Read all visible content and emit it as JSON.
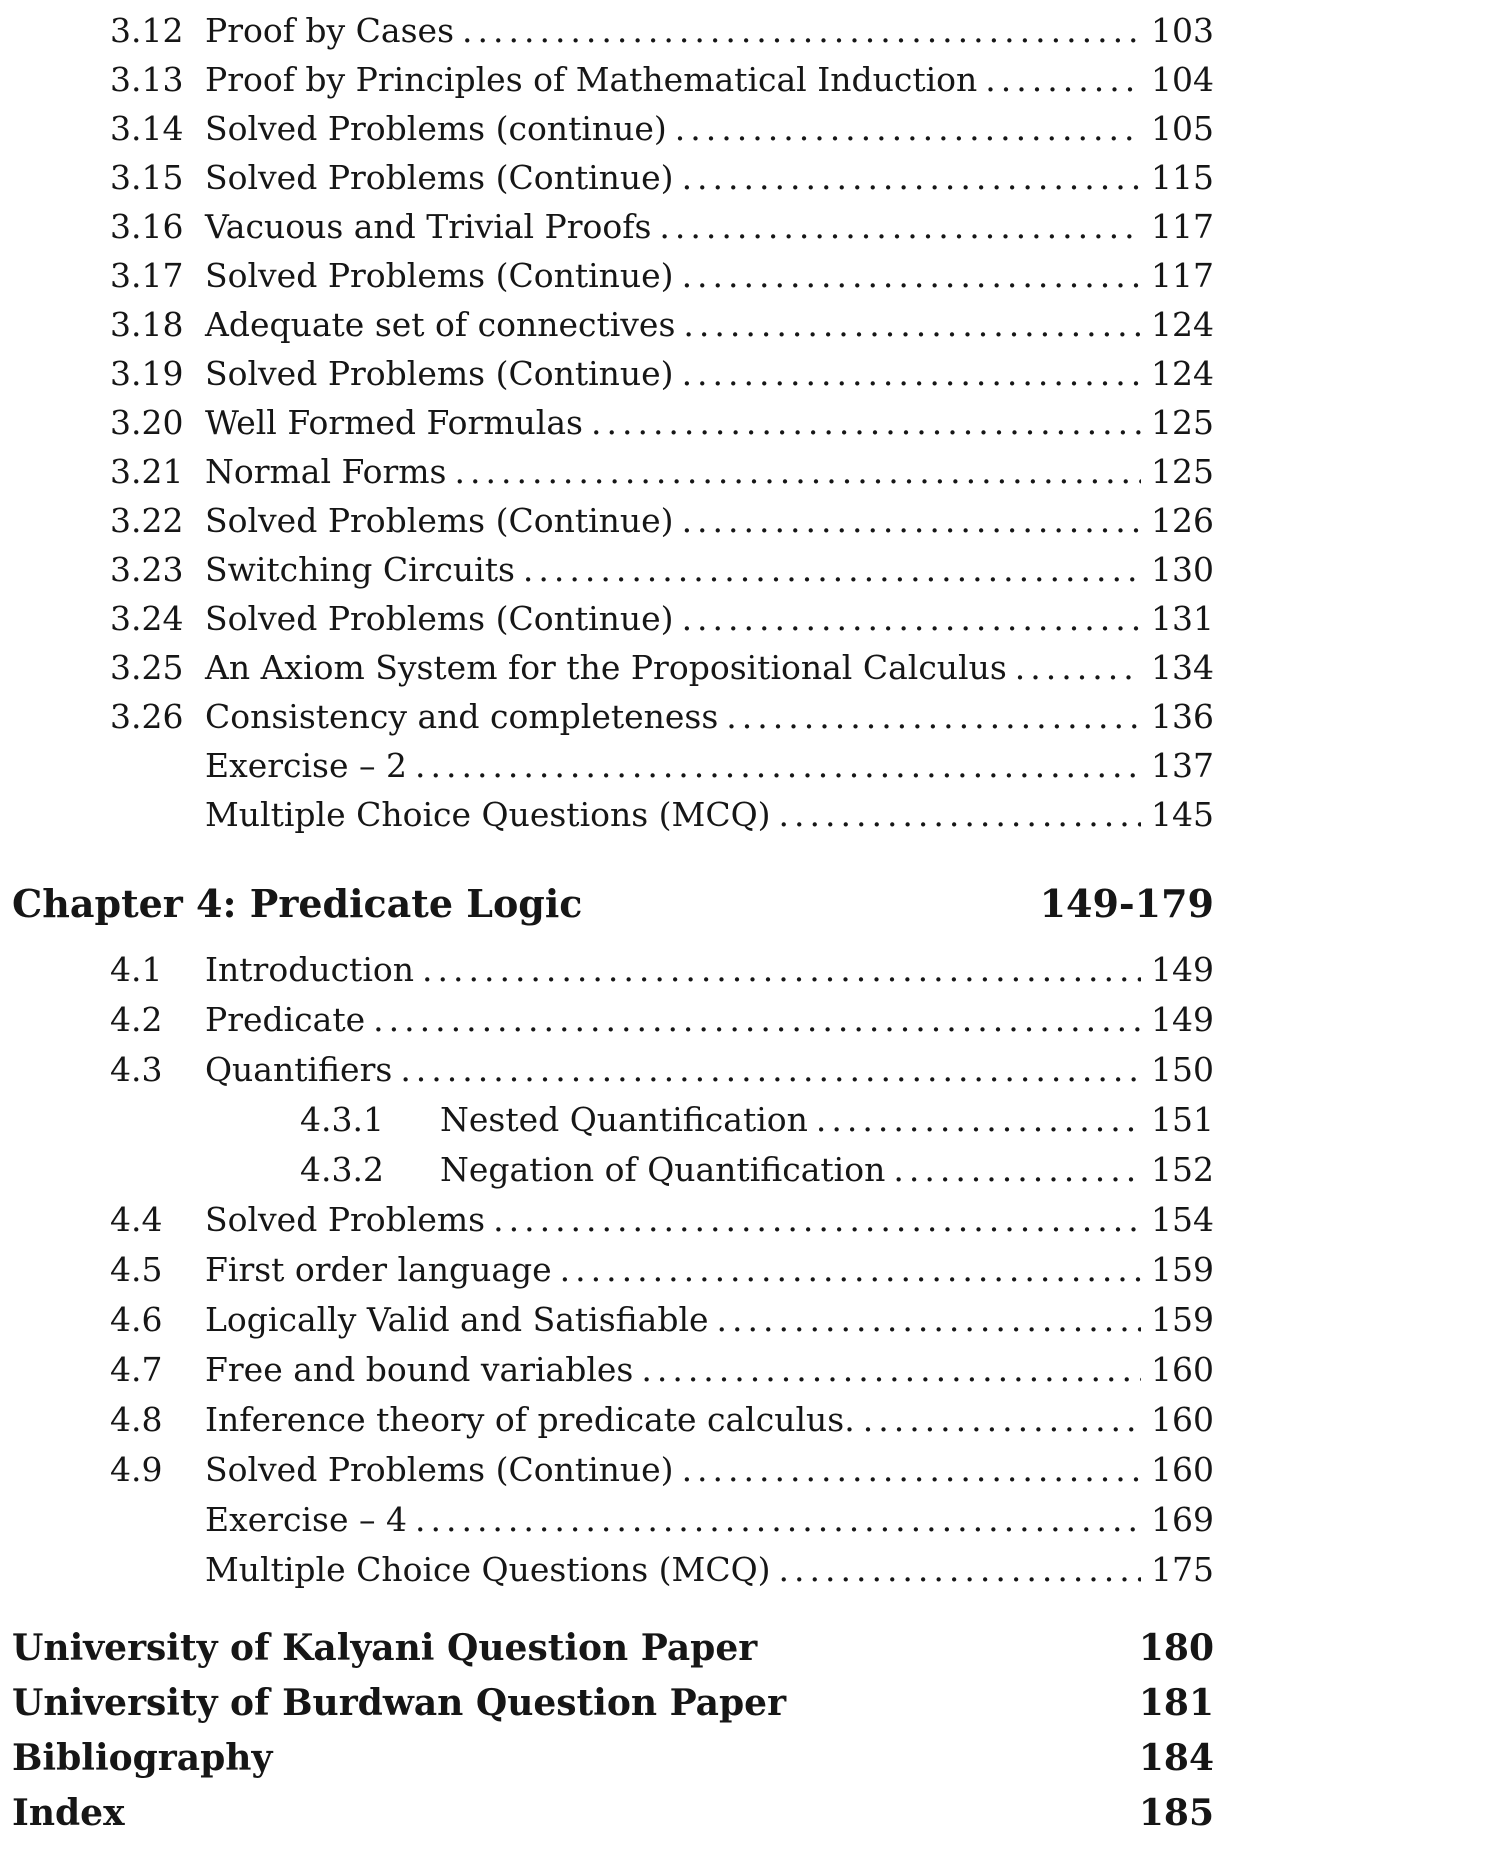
{
  "page": {
    "background": "#ffffff",
    "text_color": "#161616"
  },
  "chapter3_entries": [
    {
      "num": "3.12",
      "title": "Proof by Cases",
      "page": "103"
    },
    {
      "num": "3.13",
      "title": "Proof by Principles of Mathematical Induction",
      "page": "104"
    },
    {
      "num": "3.14",
      "title": "Solved Problems (continue)",
      "page": "105"
    },
    {
      "num": "3.15",
      "title": "Solved Problems (Continue)",
      "page": "115"
    },
    {
      "num": "3.16",
      "title": "Vacuous and Trivial Proofs",
      "page": "117"
    },
    {
      "num": "3.17",
      "title": "Solved Problems (Continue)",
      "page": "117"
    },
    {
      "num": "3.18",
      "title": "Adequate set of connectives",
      "page": "124"
    },
    {
      "num": "3.19",
      "title": "Solved Problems (Continue)",
      "page": "124"
    },
    {
      "num": "3.20",
      "title": "Well Formed Formulas",
      "page": "125"
    },
    {
      "num": "3.21",
      "title": "Normal Forms",
      "page": "125"
    },
    {
      "num": "3.22",
      "title": "Solved Problems (Continue)",
      "page": "126"
    },
    {
      "num": "3.23",
      "title": "Switching Circuits",
      "page": "130"
    },
    {
      "num": "3.24",
      "title": "Solved Problems (Continue)",
      "page": "131"
    },
    {
      "num": "3.25",
      "title": "An Axiom System for the Propositional Calculus",
      "page": "134"
    },
    {
      "num": "3.26",
      "title": "Consistency and completeness",
      "page": "136"
    },
    {
      "num": "",
      "title": "Exercise – 2",
      "page": "137"
    },
    {
      "num": "",
      "title": "Multiple Choice Questions (MCQ)",
      "page": "145"
    }
  ],
  "chapter4": {
    "heading": "Chapter 4: Predicate Logic",
    "page_range": "149-179",
    "entries": [
      {
        "num": "4.1",
        "title": "Introduction",
        "page": "149"
      },
      {
        "num": "4.2",
        "title": "Predicate",
        "page": "149"
      },
      {
        "num": "4.3",
        "title": "Quantifiers",
        "page": "150"
      },
      {
        "num": "4.3.1",
        "title": "Nested Quantification",
        "page": "151"
      },
      {
        "num": "4.3.2",
        "title": "Negation of Quantification",
        "page": "152"
      },
      {
        "num": "4.4",
        "title": "Solved Problems",
        "page": "154"
      },
      {
        "num": "4.5",
        "title": "First order language",
        "page": "159"
      },
      {
        "num": "4.6",
        "title": "Logically Valid and Satisfiable",
        "page": "159"
      },
      {
        "num": "4.7",
        "title": "Free and bound variables",
        "page": "160"
      },
      {
        "num": "4.8",
        "title": "Inference theory of predicate calculus.",
        "page": "160"
      },
      {
        "num": "4.9",
        "title": "Solved Problems (Continue)",
        "page": "160"
      },
      {
        "num": "",
        "title": "Exercise – 4",
        "page": "169"
      },
      {
        "num": "",
        "title": "Multiple Choice Questions (MCQ)",
        "page": "175"
      }
    ]
  },
  "back_matter": [
    {
      "title": "University of Kalyani Question Paper",
      "page": "180"
    },
    {
      "title": "University of Burdwan Question Paper",
      "page": "181"
    },
    {
      "title": "Bibliography",
      "page": "184"
    },
    {
      "title": "Index",
      "page": "185"
    }
  ]
}
